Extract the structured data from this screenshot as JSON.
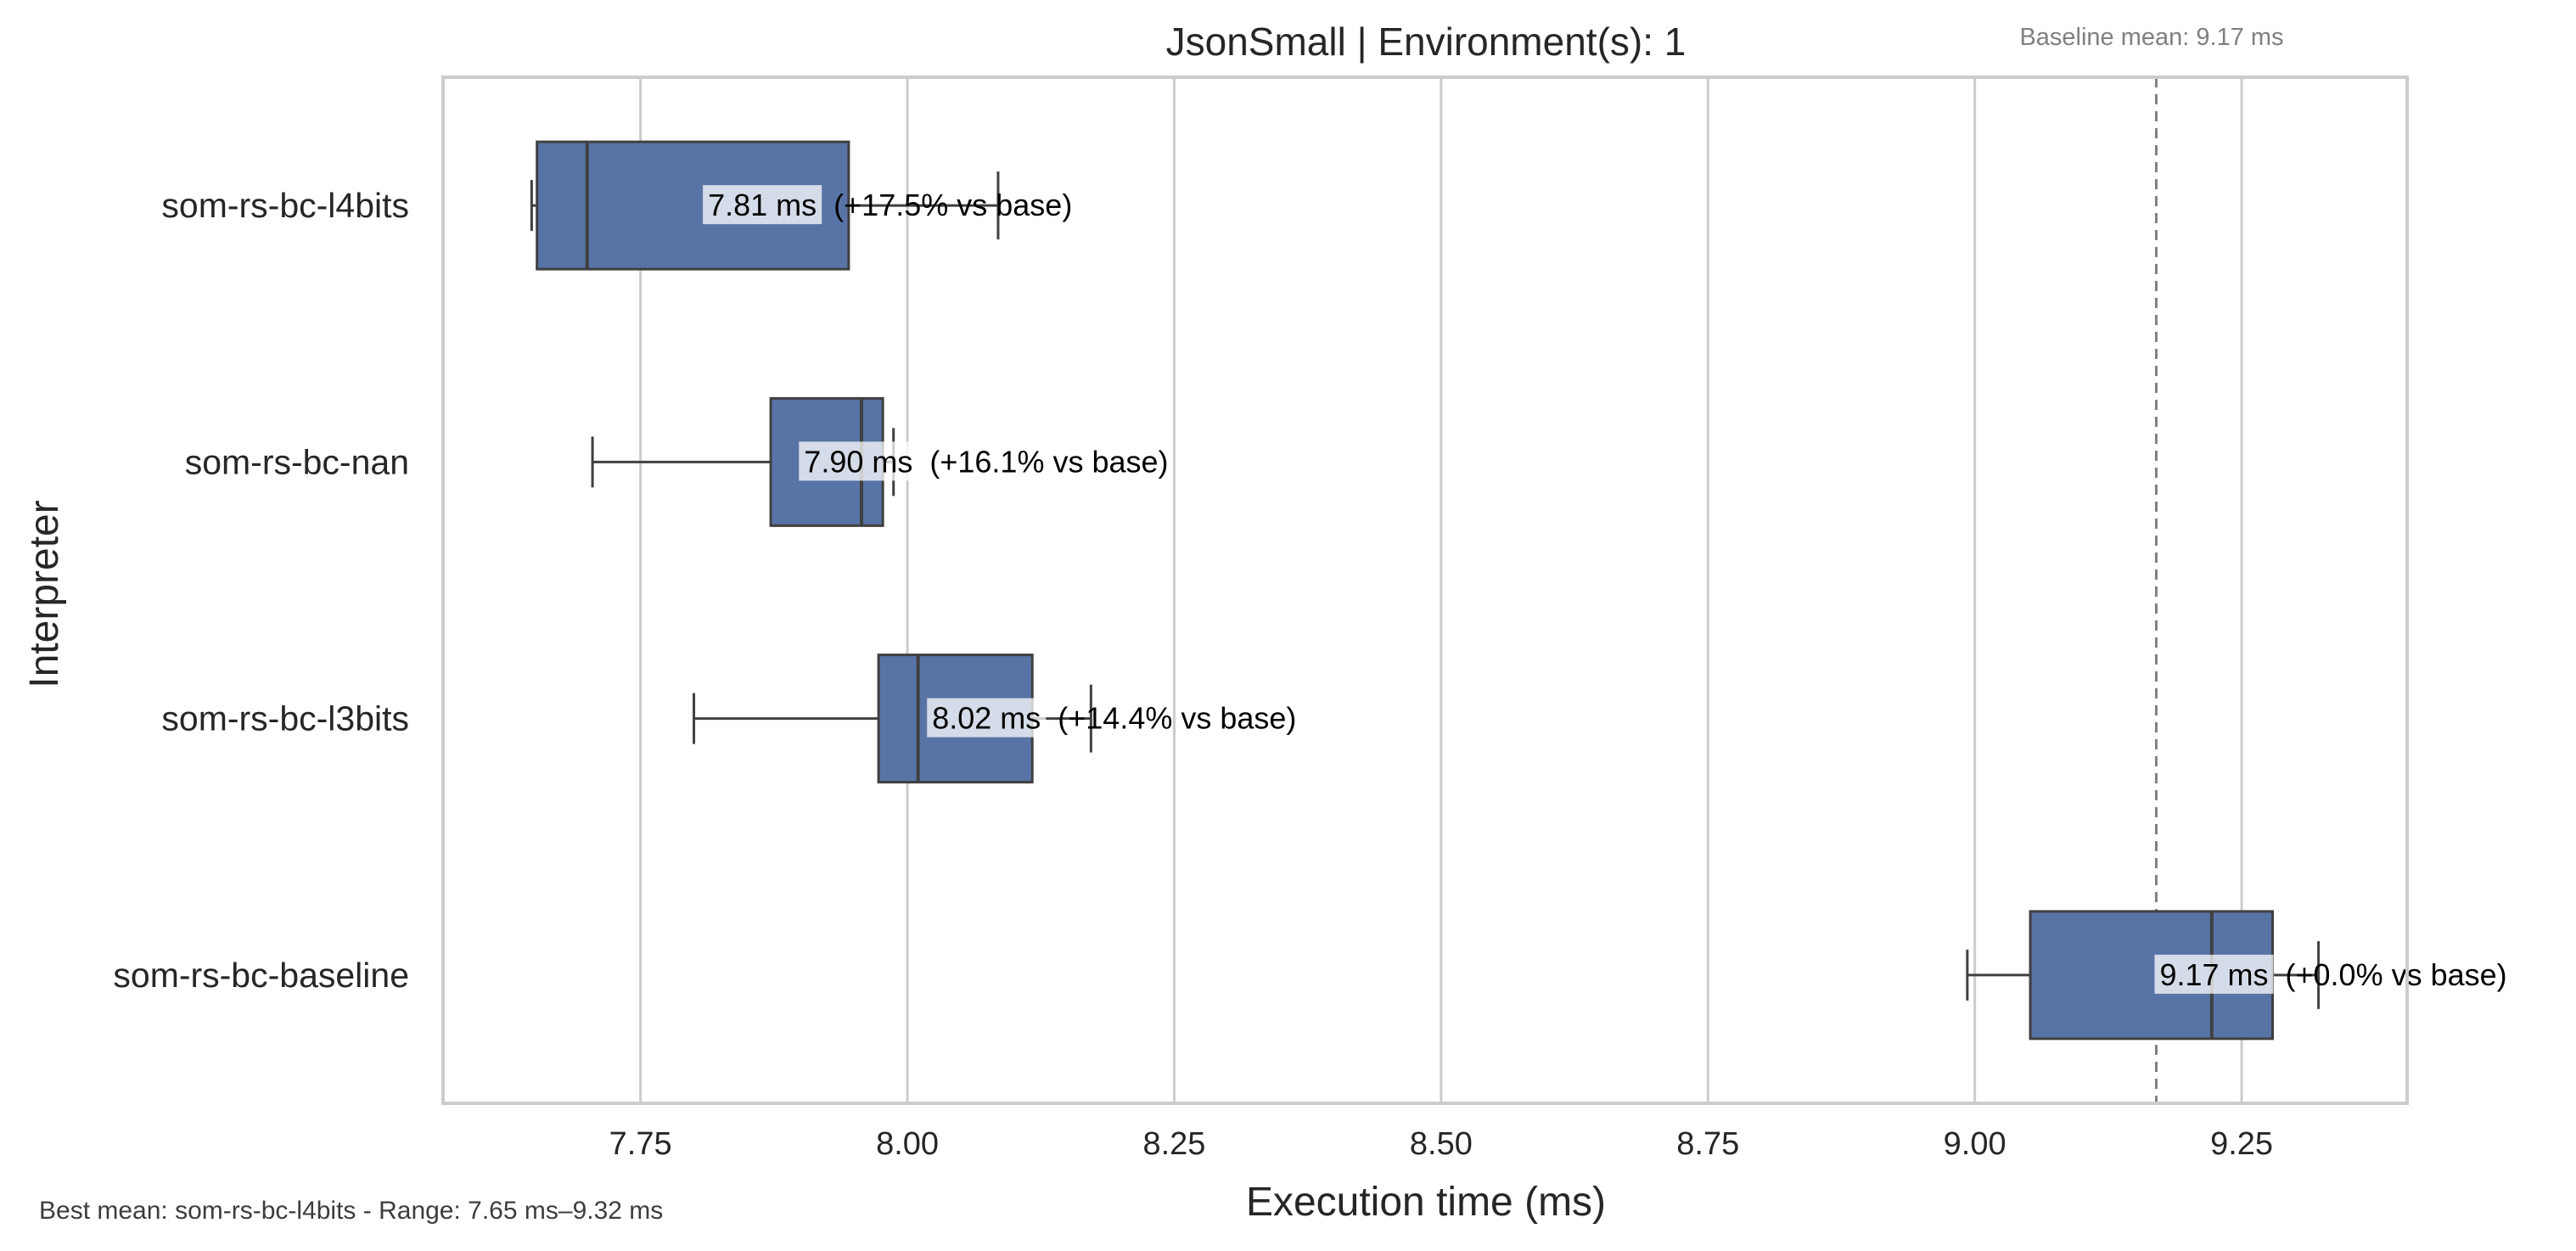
{
  "chart_data": {
    "type": "box",
    "orientation": "horizontal",
    "title": "JsonSmall | Environment(s): 1",
    "baseline_note": "Baseline mean: 9.17 ms",
    "footer": "Best mean: som-rs-bc-l4bits - Range: 7.65 ms–9.32 ms",
    "xlabel": "Execution time (ms)",
    "ylabel": "Interpreter",
    "xlim": [
      7.565,
      9.405
    ],
    "xticks": [
      "7.75",
      "8.00",
      "8.25",
      "8.50",
      "8.75",
      "9.00",
      "9.25"
    ],
    "grid": true,
    "baseline_mean": 9.17,
    "box_color": "#5874a6",
    "series": [
      {
        "name": "som-rs-bc-l4bits",
        "min": 7.648,
        "q1": 7.653,
        "median": 7.7,
        "q3": 7.945,
        "max": 8.085,
        "mean": 7.81,
        "label": "7.81 ms",
        "delta": "(+17.5% vs base)"
      },
      {
        "name": "som-rs-bc-nan",
        "min": 7.705,
        "q1": 7.872,
        "median": 7.957,
        "q3": 7.977,
        "max": 7.987,
        "mean": 7.9,
        "label": "7.90 ms",
        "delta": "(+16.1% vs base)"
      },
      {
        "name": "som-rs-bc-l3bits",
        "min": 7.8,
        "q1": 7.973,
        "median": 8.01,
        "q3": 8.117,
        "max": 8.172,
        "mean": 8.02,
        "label": "8.02 ms",
        "delta": "(+14.4% vs base)"
      },
      {
        "name": "som-rs-bc-baseline",
        "min": 8.993,
        "q1": 9.052,
        "median": 9.222,
        "q3": 9.279,
        "max": 9.322,
        "mean": 9.17,
        "label": "9.17 ms",
        "delta": "(+0.0% vs base)"
      }
    ]
  }
}
